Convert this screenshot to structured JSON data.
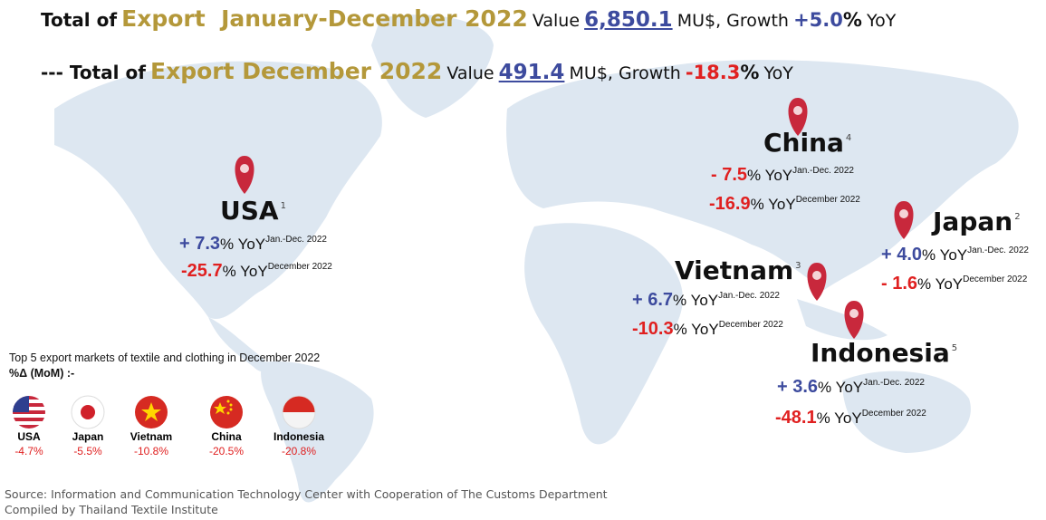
{
  "header": {
    "line1": {
      "prefix": "Total of",
      "highlight": "Export  January-December 2022",
      "value_label": "Value",
      "value": "6,850.1",
      "unit": "MU$, Growth",
      "growth": "+5.0",
      "growth_unit": "%",
      "suffix": "YoY"
    },
    "line2": {
      "prefix": "--- Total of",
      "highlight": "Export December 2022",
      "value_label": "Value",
      "value": "491.4",
      "unit": "MU$, Growth",
      "growth": "-18.3",
      "growth_unit": "%",
      "suffix": "YoY"
    }
  },
  "markets": [
    {
      "name": "USA",
      "rank": "1",
      "annual": {
        "value": "+ 7.3",
        "unit": "% YoY",
        "period": "Jan.-Dec. 2022"
      },
      "monthly": {
        "value": "-25.7",
        "unit": "% YoY",
        "period": "December 2022"
      }
    },
    {
      "name": "China",
      "rank": "4",
      "annual": {
        "value": "- 7.5",
        "unit": "% YoY",
        "period": "Jan.-Dec. 2022"
      },
      "monthly": {
        "value": "-16.9",
        "unit": "% YoY",
        "period": "December 2022"
      }
    },
    {
      "name": "Japan",
      "rank": "2",
      "annual": {
        "value": "+ 4.0",
        "unit": "% YoY",
        "period": "Jan.-Dec. 2022"
      },
      "monthly": {
        "value": "- 1.6",
        "unit": "% YoY",
        "period": "December 2022"
      }
    },
    {
      "name": "Vietnam",
      "rank": "3",
      "annual": {
        "value": "+ 6.7",
        "unit": "% YoY",
        "period": "Jan.-Dec. 2022"
      },
      "monthly": {
        "value": "-10.3",
        "unit": "% YoY",
        "period": "December 2022"
      }
    },
    {
      "name": "Indonesia",
      "rank": "5",
      "annual": {
        "value": "+ 3.6",
        "unit": "% YoY",
        "period": "Jan.-Dec. 2022"
      },
      "monthly": {
        "value": "-48.1",
        "unit": "% YoY",
        "period": "December 2022"
      }
    }
  ],
  "legend": {
    "title": "Top 5 export markets of textile and clothing in December 2022",
    "subtitle": "%Δ (MoM) :-",
    "items": [
      {
        "country": "USA",
        "mom": "-4.7%"
      },
      {
        "country": "Japan",
        "mom": "-5.5%"
      },
      {
        "country": "Vietnam",
        "mom": "-10.8%"
      },
      {
        "country": "China",
        "mom": "-20.5%"
      },
      {
        "country": "Indonesia",
        "mom": "-20.8%"
      }
    ]
  },
  "footer": {
    "source": "Source: Information and Communication Technology Center with Cooperation of The Customs Department",
    "compiled": "Compiled by Thailand Textile Institute"
  }
}
